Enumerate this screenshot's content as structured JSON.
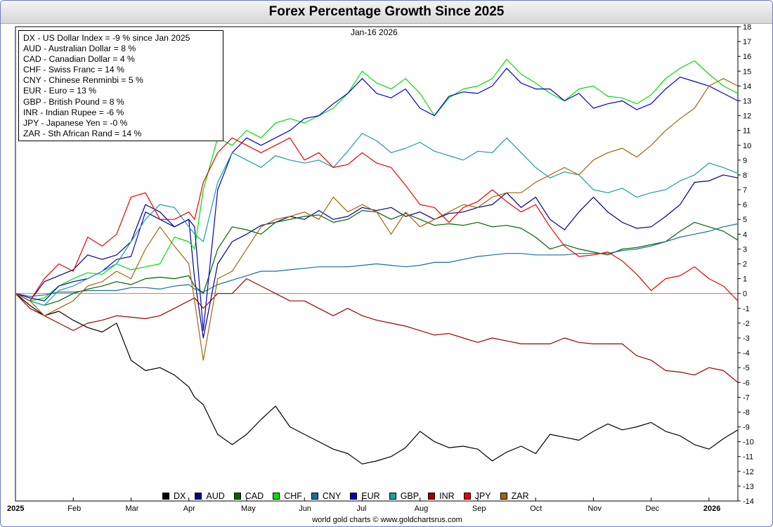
{
  "title": "Forex Percentage Growth Since 2025",
  "date_label": "Jan-16  2026",
  "source": "world gold charts © www.goldchartsrus.com",
  "legend_box": [
    "DX - US Dollar Index = -9 % since Jan 2025",
    "AUD - Australian Dollar = 8 %",
    "CAD - Canadian Dollar = 4 %",
    "CHF - Swiss Franc = 14 %",
    "CNY - Chinese Renminbi = 5 %",
    "EUR - Euro = 13 %",
    "GBP - British Pound = 8 %",
    "INR - Indian Rupee = -6 %",
    "JPY - Japanese Yen = -0 %",
    "ZAR - Sth African Rand = 14 %"
  ],
  "chart_data": {
    "type": "line",
    "title": "Forex Percentage Growth Since 2025",
    "xlabel": "",
    "ylabel": "",
    "ylim": [
      -14,
      18
    ],
    "yticks": [
      18,
      17,
      16,
      15,
      14,
      13,
      12,
      11,
      10,
      9,
      8,
      7,
      6,
      5,
      4,
      3,
      2,
      1,
      0,
      -1,
      -2,
      -3,
      -4,
      -5,
      -6,
      -7,
      -8,
      -9,
      -10,
      -11,
      -12,
      -13,
      -14
    ],
    "x_tick_labels": [
      "2025",
      "Feb",
      "Mar",
      "Apr",
      "May",
      "Jun",
      "Jul",
      "Aug",
      "Sep",
      "Oct",
      "Nov",
      "Dec",
      "2026"
    ],
    "x_tick_months": [
      0,
      1,
      2,
      3,
      4,
      5,
      6,
      7,
      8,
      9,
      10,
      11,
      12
    ],
    "x_range_months": [
      0,
      12.5
    ],
    "grid": false,
    "zero_line": true,
    "legend_position": "bottom",
    "x": [
      0,
      0.25,
      0.5,
      0.75,
      1,
      1.25,
      1.5,
      1.75,
      2,
      2.25,
      2.5,
      2.75,
      3,
      3.1,
      3.25,
      3.5,
      3.75,
      4,
      4.25,
      4.5,
      4.75,
      5,
      5.25,
      5.5,
      5.75,
      6,
      6.25,
      6.5,
      6.75,
      7,
      7.25,
      7.5,
      7.75,
      8,
      8.25,
      8.5,
      8.75,
      9,
      9.25,
      9.5,
      9.75,
      10,
      10.25,
      10.5,
      10.75,
      11,
      11.25,
      11.5,
      11.75,
      12,
      12.25,
      12.5
    ],
    "series": [
      {
        "name": "DX",
        "color": "#000000",
        "values": [
          0,
          -0.8,
          -1.5,
          -1.2,
          -1.8,
          -2.3,
          -2.6,
          -2.0,
          -4.5,
          -5.2,
          -5.0,
          -5.5,
          -6.3,
          -7.0,
          -7.5,
          -9.5,
          -10.2,
          -9.5,
          -8.5,
          -7.6,
          -9.0,
          -9.5,
          -10.0,
          -10.5,
          -10.8,
          -11.5,
          -11.3,
          -11.0,
          -10.4,
          -9.3,
          -10.0,
          -10.4,
          -10.3,
          -10.5,
          -11.3,
          -10.7,
          -10.3,
          -10.8,
          -9.5,
          -9.7,
          -9.9,
          -9.3,
          -8.8,
          -9.2,
          -9.0,
          -8.7,
          -9.3,
          -9.6,
          -10.2,
          -10.5,
          -9.8,
          -9.2
        ]
      },
      {
        "name": "AUD",
        "color": "#00008b",
        "values": [
          0,
          -0.5,
          0.8,
          1.2,
          1.6,
          2.6,
          2.3,
          2.6,
          3.5,
          6.0,
          5.5,
          4.5,
          5.0,
          1.0,
          -3.0,
          2.0,
          3.5,
          4.0,
          4.6,
          4.8,
          5.2,
          5.0,
          5.6,
          5.0,
          5.2,
          5.8,
          5.6,
          5.8,
          5.2,
          5.5,
          5.0,
          5.4,
          5.5,
          5.8,
          6.0,
          6.8,
          5.8,
          6.5,
          5.0,
          4.3,
          5.5,
          6.5,
          5.5,
          4.8,
          4.4,
          4.5,
          5.2,
          6.0,
          7.5,
          7.6,
          8.0,
          7.8
        ]
      },
      {
        "name": "CAD",
        "color": "#006400",
        "values": [
          0,
          -0.5,
          -0.8,
          -0.5,
          0,
          0.3,
          0.5,
          0.8,
          0.6,
          1.0,
          1.1,
          1.0,
          1.2,
          0.5,
          0,
          3.0,
          4.5,
          4.3,
          4.0,
          4.8,
          5.0,
          5.2,
          5.3,
          4.8,
          5.0,
          5.6,
          5.5,
          5.0,
          5.4,
          5.0,
          4.6,
          4.7,
          4.6,
          4.8,
          4.5,
          4.6,
          4.4,
          3.8,
          3.0,
          3.3,
          3.0,
          2.8,
          2.6,
          3.0,
          3.1,
          3.3,
          3.5,
          4.2,
          4.8,
          4.5,
          4.2,
          3.6
        ]
      },
      {
        "name": "CHF",
        "color": "#00e000",
        "values": [
          0,
          -0.5,
          -0.3,
          0.5,
          1.0,
          1.4,
          1.3,
          2.0,
          1.6,
          1.8,
          2.0,
          3.8,
          3.5,
          3.0,
          7.0,
          10.5,
          10.0,
          11.0,
          10.5,
          11.5,
          11.8,
          11.5,
          12.0,
          12.5,
          13.5,
          15.0,
          14.2,
          13.8,
          14.5,
          13.5,
          12.0,
          13.2,
          13.8,
          14.0,
          14.5,
          15.8,
          14.8,
          14.2,
          13.5,
          13.0,
          13.8,
          14.0,
          13.3,
          13.2,
          12.8,
          13.4,
          14.5,
          15.2,
          15.7,
          14.8,
          14.0,
          13.5
        ]
      },
      {
        "name": "CNY",
        "color": "#1a6f99",
        "values": [
          0,
          -0.2,
          -0.1,
          0.1,
          0.1,
          0.2,
          0.2,
          0.2,
          0.4,
          0.4,
          0.3,
          0.5,
          0.6,
          0.3,
          0.1,
          0.6,
          0.9,
          1.2,
          1.5,
          1.5,
          1.6,
          1.7,
          1.8,
          1.8,
          1.8,
          1.9,
          2.0,
          1.9,
          1.8,
          1.9,
          2.1,
          2.1,
          2.3,
          2.5,
          2.6,
          2.7,
          2.7,
          2.6,
          2.6,
          2.6,
          2.7,
          2.7,
          2.7,
          2.9,
          3.0,
          3.2,
          3.5,
          3.8,
          4.0,
          4.2,
          4.5,
          4.7
        ]
      },
      {
        "name": "EUR",
        "color": "#0000cd",
        "values": [
          0,
          -0.3,
          -0.5,
          0.5,
          0.8,
          1.0,
          1.5,
          2.3,
          2.5,
          5.5,
          5.0,
          4.5,
          5.0,
          4.5,
          -2.5,
          7.0,
          9.5,
          10.5,
          10.0,
          10.5,
          11.0,
          11.8,
          12.0,
          12.8,
          13.5,
          14.5,
          13.5,
          13.2,
          13.8,
          12.5,
          12.0,
          13.3,
          13.6,
          13.5,
          14.0,
          15.2,
          14.2,
          13.8,
          13.8,
          13.0,
          13.5,
          12.5,
          12.8,
          13.0,
          12.4,
          12.8,
          13.8,
          14.6,
          14.3,
          14.0,
          13.5,
          13.0
        ]
      },
      {
        "name": "GBP",
        "color": "#1a9e9e",
        "values": [
          0,
          -0.5,
          -0.8,
          0.2,
          0.5,
          1.0,
          1.5,
          2.0,
          3.5,
          5.0,
          6.0,
          5.8,
          4.5,
          4.0,
          3.5,
          7.5,
          9.5,
          9.0,
          8.5,
          9.3,
          9.0,
          8.8,
          9.0,
          8.5,
          9.6,
          10.8,
          10.3,
          9.5,
          9.8,
          10.2,
          9.6,
          9.3,
          9.0,
          9.6,
          9.5,
          10.5,
          9.5,
          8.5,
          7.8,
          8.2,
          8.0,
          7.0,
          6.8,
          7.1,
          6.5,
          6.8,
          7.0,
          7.6,
          8.0,
          8.8,
          8.5,
          8.1
        ]
      },
      {
        "name": "INR",
        "color": "#a00000",
        "values": [
          0,
          -1.0,
          -1.5,
          -2.0,
          -2.5,
          -2.0,
          -1.8,
          -1.5,
          -1.6,
          -1.7,
          -1.5,
          -1.0,
          -0.5,
          -0.3,
          -1.0,
          0,
          0,
          1.0,
          0.5,
          0,
          -0.5,
          -0.5,
          -1.0,
          -1.5,
          -1.0,
          -1.5,
          -1.8,
          -2.0,
          -2.2,
          -2.5,
          -2.8,
          -2.7,
          -3.0,
          -3.3,
          -3.0,
          -3.2,
          -3.4,
          -3.4,
          -3.4,
          -3.0,
          -3.3,
          -3.4,
          -3.4,
          -3.4,
          -4.2,
          -4.5,
          -5.2,
          -5.3,
          -5.5,
          -5.0,
          -5.2,
          -6.0
        ]
      },
      {
        "name": "JPY",
        "color": "#ee0000",
        "values": [
          0,
          -0.5,
          1.0,
          2.0,
          1.5,
          3.8,
          3.2,
          4.0,
          6.5,
          6.8,
          5.0,
          5.0,
          5.5,
          5.0,
          7.5,
          9.5,
          10.5,
          10.0,
          9.5,
          10.0,
          10.5,
          9.0,
          9.5,
          8.5,
          8.7,
          9.5,
          8.8,
          8.5,
          7.3,
          6.0,
          5.8,
          4.8,
          5.8,
          6.2,
          7.0,
          6.2,
          5.5,
          6.0,
          4.5,
          3.2,
          2.5,
          2.6,
          2.8,
          2.2,
          1.3,
          0.2,
          1.0,
          1.2,
          1.8,
          1.0,
          0.5,
          -0.5
        ]
      },
      {
        "name": "ZAR",
        "color": "#a0660a",
        "values": [
          0,
          -0.5,
          -1.5,
          -1.0,
          -0.5,
          0.5,
          0.8,
          1.5,
          1.0,
          3.0,
          4.5,
          3.2,
          2.0,
          -0.5,
          -4.5,
          1.0,
          1.5,
          3.0,
          4.5,
          5.0,
          5.2,
          5.5,
          5.0,
          6.5,
          5.5,
          6.0,
          5.5,
          4.0,
          5.5,
          4.5,
          5.0,
          5.5,
          6.0,
          5.8,
          6.5,
          6.8,
          6.8,
          7.5,
          8.0,
          8.5,
          8.0,
          9.0,
          9.5,
          9.8,
          9.2,
          10.0,
          11.0,
          11.8,
          12.5,
          14.0,
          14.5,
          14.0
        ]
      }
    ]
  }
}
